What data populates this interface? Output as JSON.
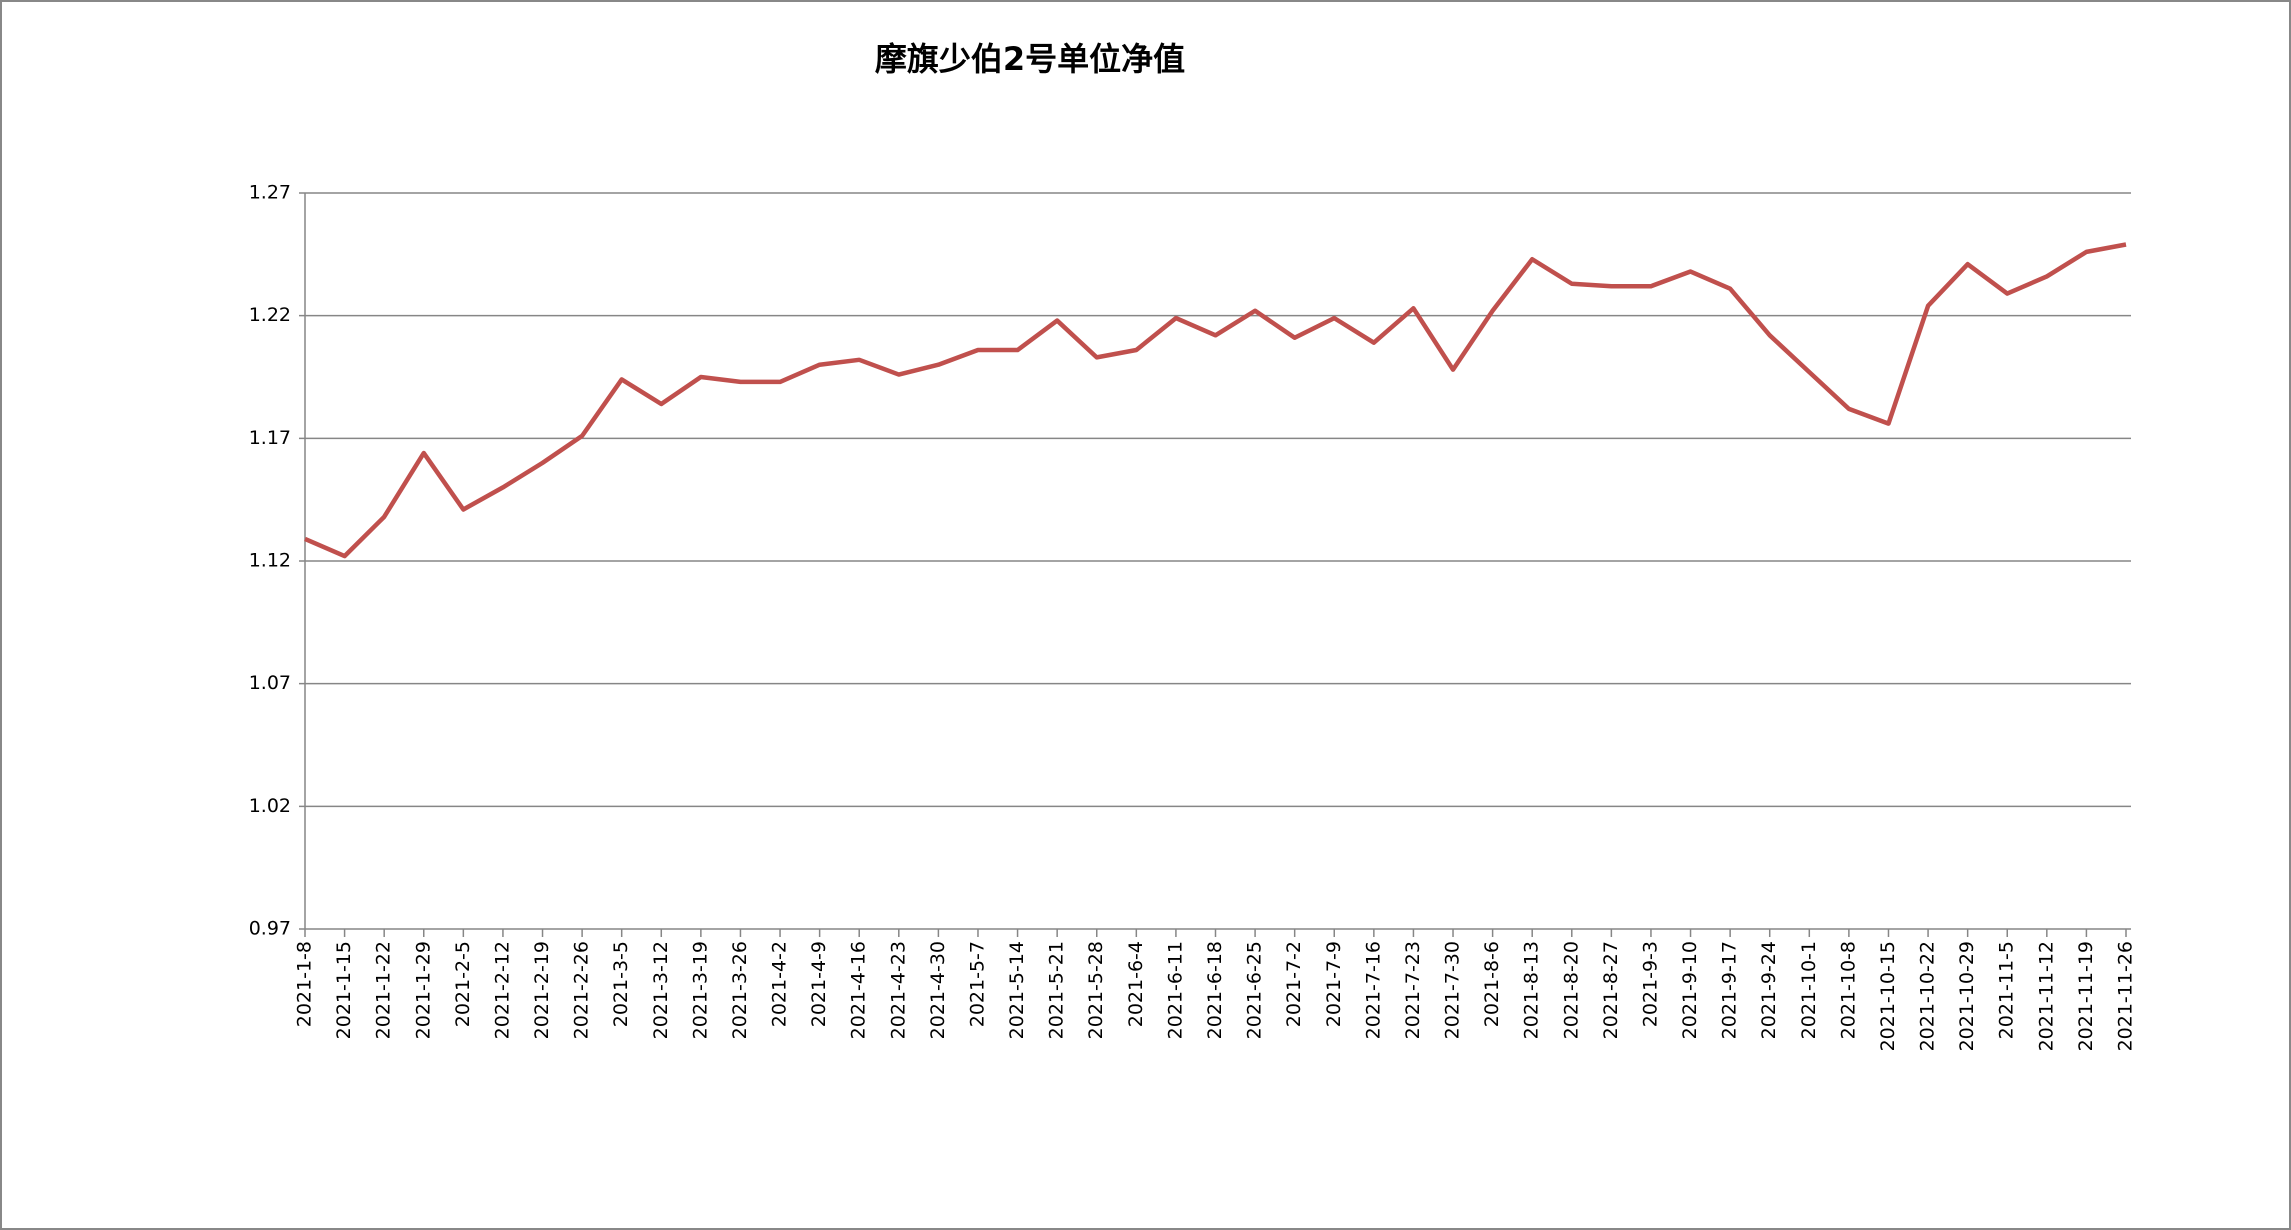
{
  "chart_data": {
    "type": "line",
    "title": "摩旗少伯2号单位净值",
    "categories": [
      "2021-1-8",
      "2021-1-15",
      "2021-1-22",
      "2021-1-29",
      "2021-2-5",
      "2021-2-12",
      "2021-2-19",
      "2021-2-26",
      "2021-3-5",
      "2021-3-12",
      "2021-3-19",
      "2021-3-26",
      "2021-4-2",
      "2021-4-9",
      "2021-4-16",
      "2021-4-23",
      "2021-4-30",
      "2021-5-7",
      "2021-5-14",
      "2021-5-21",
      "2021-5-28",
      "2021-6-4",
      "2021-6-11",
      "2021-6-18",
      "2021-6-25",
      "2021-7-2",
      "2021-7-9",
      "2021-7-16",
      "2021-7-23",
      "2021-7-30",
      "2021-8-6",
      "2021-8-13",
      "2021-8-20",
      "2021-8-27",
      "2021-9-3",
      "2021-9-10",
      "2021-9-17",
      "2021-9-24",
      "2021-10-1",
      "2021-10-8",
      "2021-10-15",
      "2021-10-22",
      "2021-10-29",
      "2021-11-5",
      "2021-11-12",
      "2021-11-19",
      "2021-11-26"
    ],
    "values": [
      1.129,
      1.122,
      1.138,
      1.164,
      1.141,
      1.15,
      1.16,
      1.171,
      1.194,
      1.184,
      1.195,
      1.193,
      1.193,
      1.2,
      1.202,
      1.196,
      1.2,
      1.206,
      1.206,
      1.218,
      1.203,
      1.206,
      1.219,
      1.212,
      1.222,
      1.211,
      1.219,
      1.209,
      1.223,
      1.198,
      1.222,
      1.243,
      1.233,
      1.232,
      1.232,
      1.238,
      1.231,
      1.212,
      1.197,
      1.182,
      1.176,
      1.224,
      1.241,
      1.229,
      1.236,
      1.246,
      1.249
    ],
    "color": "#c0504d",
    "ylim": [
      0.97,
      1.27
    ],
    "yticks": [
      0.97,
      1.02,
      1.07,
      1.12,
      1.17,
      1.22,
      1.27
    ],
    "grid": true
  }
}
